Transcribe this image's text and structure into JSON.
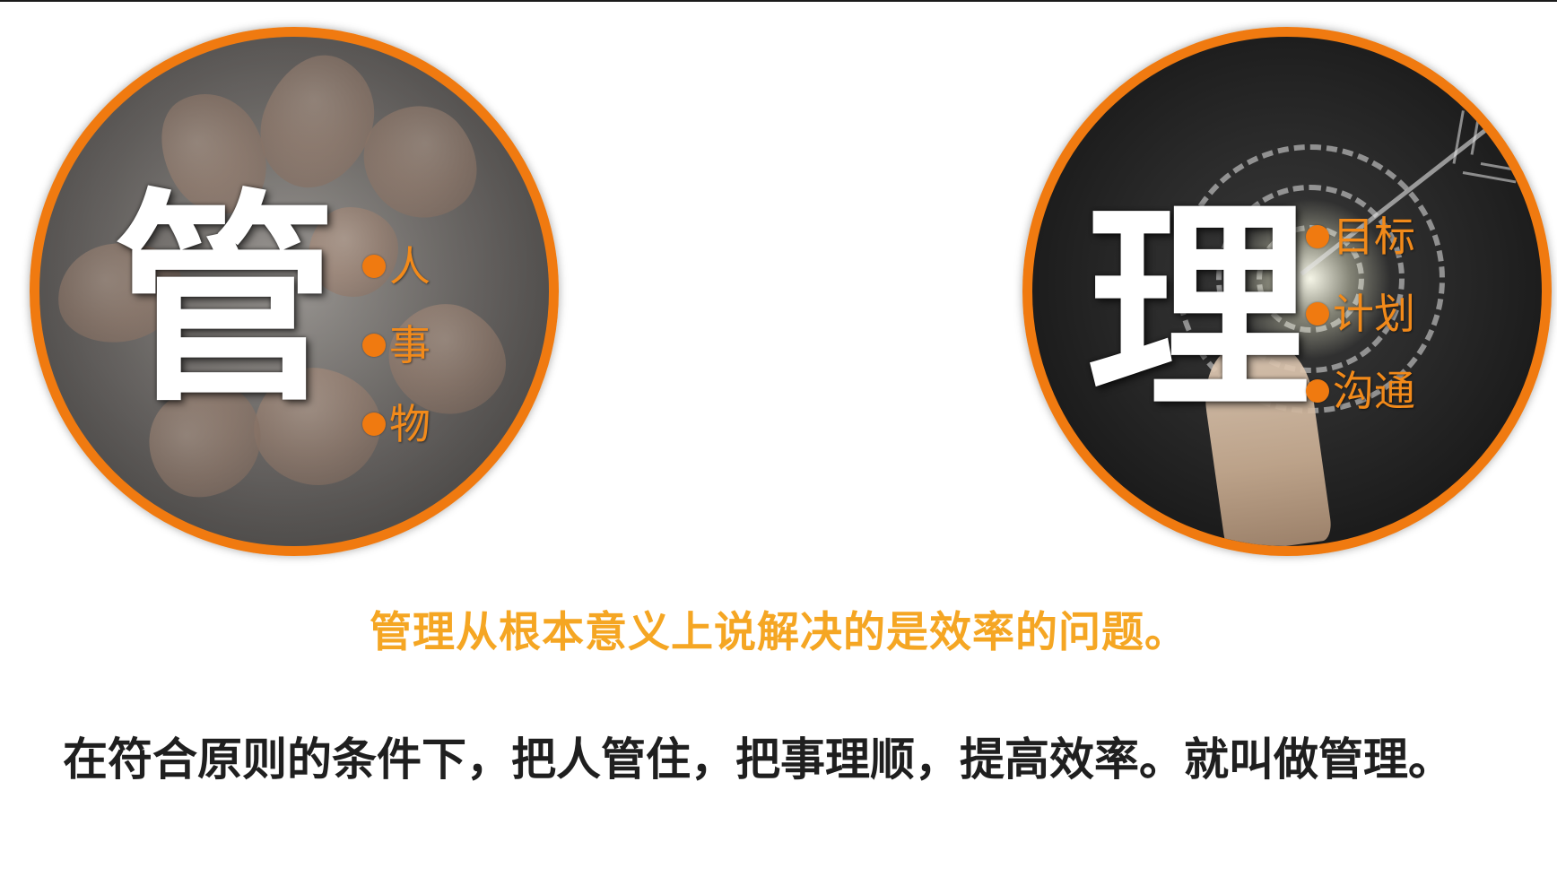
{
  "colors": {
    "accent_orange": "#f07a10",
    "highlight_text": "#f5a623",
    "body_text": "#1f1f1f",
    "background": "#ffffff"
  },
  "left_panel": {
    "big_char": "管",
    "items": [
      "人",
      "事",
      "物"
    ]
  },
  "right_panel": {
    "big_char": "理",
    "items": [
      "目标",
      "计划",
      "沟通"
    ]
  },
  "highlight_text": "管理从根本意义上说解决的是效率的问题。",
  "definition_text": "在符合原则的条件下，把人管住，把事理顺，提高效率。就叫做管理。"
}
